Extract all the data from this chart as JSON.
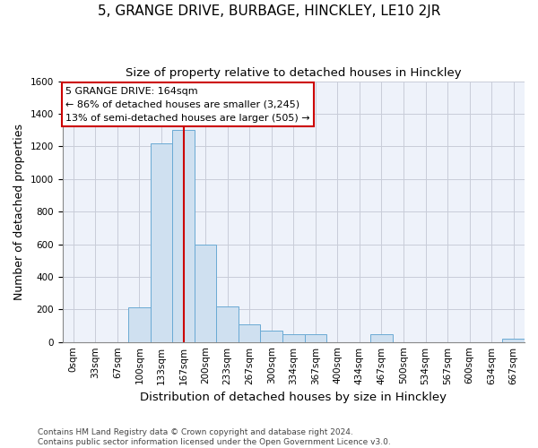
{
  "title": "5, GRANGE DRIVE, BURBAGE, HINCKLEY, LE10 2JR",
  "subtitle": "Size of property relative to detached houses in Hinckley",
  "xlabel": "Distribution of detached houses by size in Hinckley",
  "ylabel": "Number of detached properties",
  "footnote1": "Contains HM Land Registry data © Crown copyright and database right 2024.",
  "footnote2": "Contains public sector information licensed under the Open Government Licence v3.0.",
  "annotation_line1": "5 GRANGE DRIVE: 164sqm",
  "annotation_line2": "← 86% of detached houses are smaller (3,245)",
  "annotation_line3": "13% of semi-detached houses are larger (505) →",
  "bin_labels": [
    "0sqm",
    "33sqm",
    "67sqm",
    "100sqm",
    "133sqm",
    "167sqm",
    "200sqm",
    "233sqm",
    "267sqm",
    "300sqm",
    "334sqm",
    "367sqm",
    "400sqm",
    "434sqm",
    "467sqm",
    "500sqm",
    "534sqm",
    "567sqm",
    "600sqm",
    "634sqm",
    "667sqm"
  ],
  "bar_heights": [
    0,
    0,
    0,
    210,
    1220,
    1300,
    600,
    220,
    110,
    70,
    50,
    50,
    0,
    0,
    50,
    0,
    0,
    0,
    0,
    0,
    20
  ],
  "bar_color": "#cfe0f0",
  "bar_edge_color": "#6aaad4",
  "red_line_x": 5.5,
  "red_line_color": "#cc0000",
  "ylim": [
    0,
    1600
  ],
  "yticks": [
    0,
    200,
    400,
    600,
    800,
    1000,
    1200,
    1400,
    1600
  ],
  "grid_color": "#c8ccd8",
  "bg_color": "#eef2fa",
  "title_fontsize": 11,
  "subtitle_fontsize": 9.5,
  "annotation_fontsize": 8,
  "ylabel_fontsize": 9,
  "tick_fontsize": 7.5,
  "footnote_fontsize": 6.5,
  "xlabel_fontsize": 9.5
}
